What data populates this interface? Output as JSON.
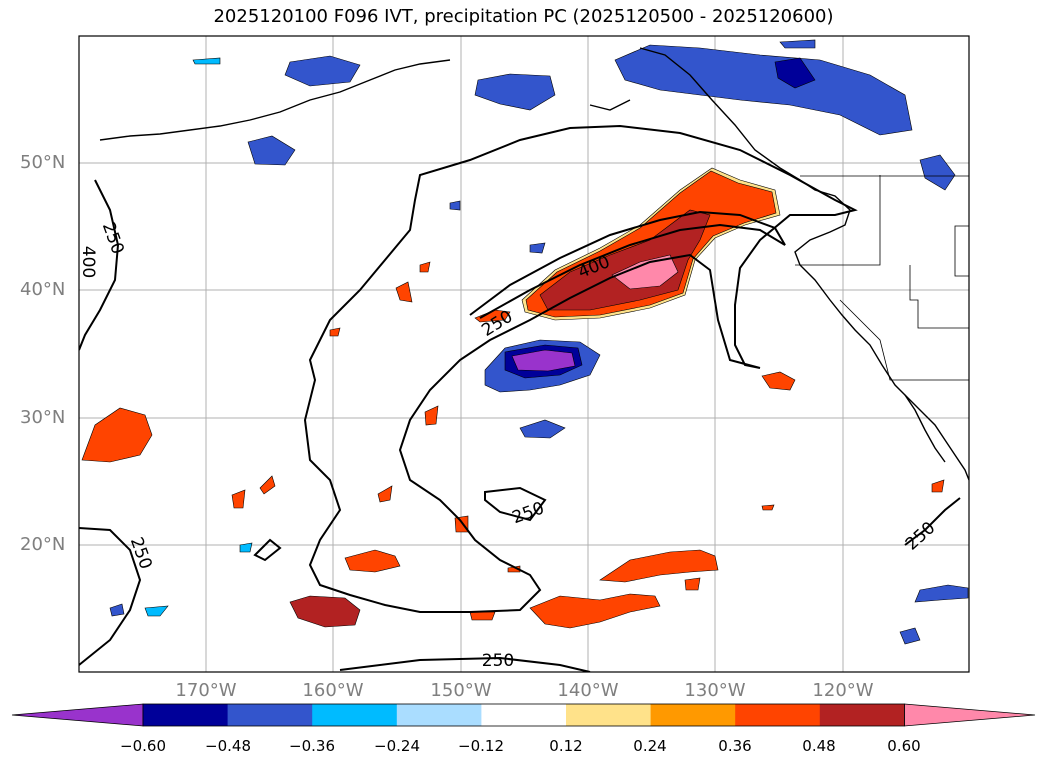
{
  "title": "2025120100 F096 IVT, precipitation PC (2025120500 - 2025120600)",
  "latitude_labels": [
    "50°N",
    "40°N",
    "30°N",
    "20°N"
  ],
  "longitude_labels": [
    "170°W",
    "160°W",
    "150°W",
    "140°W",
    "130°W",
    "120°W"
  ],
  "contour_labels": [
    "400",
    "250",
    "250",
    "400",
    "250",
    "250",
    "250",
    "250"
  ],
  "colorbar": {
    "labels": [
      "−0.60",
      "−0.48",
      "−0.36",
      "−0.24",
      "−0.12",
      "0.12",
      "0.24",
      "0.36",
      "0.48",
      "0.60"
    ],
    "colors": [
      "#9933cc",
      "#000099",
      "#3355cc",
      "#00bbff",
      "#aaddff",
      "#ffffff",
      "#ffe28a",
      "#ff9900",
      "#ff4400",
      "#b22222",
      "#ff88aa"
    ]
  },
  "palette": {
    "neg_deep": "#000099",
    "neg_purple": "#9933cc",
    "neg_blue": "#3355cc",
    "neg_cyan": "#00bbff",
    "neg_light": "#aaddff",
    "pos_yellow": "#ffe28a",
    "pos_orange": "#ff9900",
    "pos_redorange": "#ff4400",
    "pos_darkred": "#b22222",
    "pos_pink": "#ff88aa"
  }
}
